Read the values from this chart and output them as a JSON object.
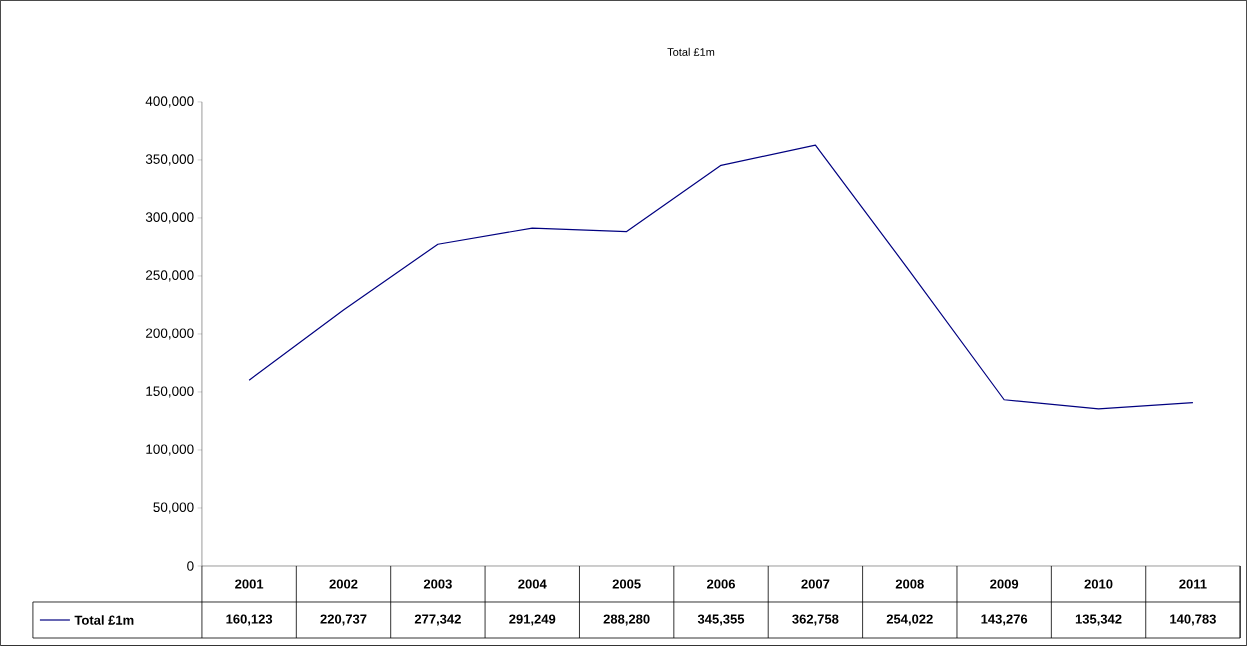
{
  "chart_data": {
    "type": "line",
    "title": "Total £1m",
    "categories": [
      "2001",
      "2002",
      "2003",
      "2004",
      "2005",
      "2006",
      "2007",
      "2008",
      "2009",
      "2010",
      "2011"
    ],
    "series": [
      {
        "name": "Total £1m",
        "color": "#000080",
        "values": [
          160123,
          220737,
          277342,
          291249,
          288280,
          345355,
          362758,
          254022,
          143276,
          135342,
          140783
        ],
        "value_labels": [
          "160,123",
          "220,737",
          "277,342",
          "291,249",
          "288,280",
          "345,355",
          "362,758",
          "254,022",
          "143,276",
          "135,342",
          "140,783"
        ]
      }
    ],
    "ylim": [
      0,
      400000
    ],
    "yticks": [
      {
        "value": 0,
        "label": "0"
      },
      {
        "value": 50000,
        "label": "50,000"
      },
      {
        "value": 100000,
        "label": "100,000"
      },
      {
        "value": 150000,
        "label": "150,000"
      },
      {
        "value": 200000,
        "label": "200,000"
      },
      {
        "value": 250000,
        "label": "250,000"
      },
      {
        "value": 300000,
        "label": "300,000"
      },
      {
        "value": 350000,
        "label": "350,000"
      },
      {
        "value": 400000,
        "label": "400,000"
      }
    ],
    "legend": "bottom"
  }
}
